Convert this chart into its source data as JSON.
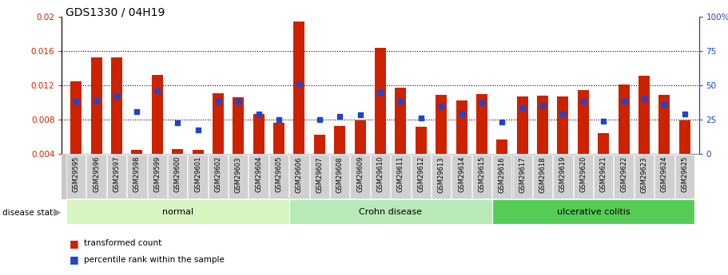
{
  "title": "GDS1330 / 04H19",
  "samples": [
    "GSM29595",
    "GSM29596",
    "GSM29597",
    "GSM29598",
    "GSM29599",
    "GSM29600",
    "GSM29601",
    "GSM29602",
    "GSM29603",
    "GSM29604",
    "GSM29605",
    "GSM29606",
    "GSM29607",
    "GSM29608",
    "GSM29609",
    "GSM29610",
    "GSM29611",
    "GSM29612",
    "GSM29613",
    "GSM29614",
    "GSM29615",
    "GSM29616",
    "GSM29617",
    "GSM29618",
    "GSM29619",
    "GSM29620",
    "GSM29621",
    "GSM29622",
    "GSM29623",
    "GSM29624",
    "GSM29625"
  ],
  "red_bars": [
    0.0125,
    0.0152,
    0.0152,
    0.0045,
    0.0132,
    0.0046,
    0.0045,
    0.0111,
    0.0106,
    0.0087,
    0.0076,
    0.0194,
    0.0062,
    0.0073,
    0.0079,
    0.0164,
    0.0117,
    0.0072,
    0.0109,
    0.0102,
    0.011,
    0.0057,
    0.0107,
    0.0108,
    0.0107,
    0.0114,
    0.0064,
    0.0121,
    0.0131,
    0.0109,
    0.0079
  ],
  "blue_squares": [
    0.0101,
    0.0102,
    0.0108,
    0.0089,
    0.0113,
    0.0076,
    0.0068,
    0.0101,
    0.0101,
    0.0087,
    0.008,
    0.0122,
    0.008,
    0.0084,
    0.0086,
    0.0112,
    0.0101,
    0.0082,
    0.0096,
    0.0087,
    0.01,
    0.0077,
    0.0094,
    0.0097,
    0.0087,
    0.0101,
    0.0078,
    0.0101,
    0.0104,
    0.0098,
    0.0087
  ],
  "group_boundaries": [
    [
      0,
      10,
      "normal",
      "#d8f5c0"
    ],
    [
      11,
      20,
      "Crohn disease",
      "#b8eab8"
    ],
    [
      21,
      30,
      "ulcerative colitis",
      "#55cc55"
    ]
  ],
  "ylim_left": [
    0.004,
    0.02
  ],
  "ylim_right": [
    0,
    100
  ],
  "yticks_left": [
    0.004,
    0.008,
    0.012,
    0.016,
    0.02
  ],
  "ytick_labels_left": [
    "0.004",
    "0.008",
    "0.012",
    "0.016",
    "0.02"
  ],
  "yticks_right": [
    0,
    25,
    50,
    75,
    100
  ],
  "ytick_labels_right": [
    "0",
    "25",
    "50",
    "75",
    "100%"
  ],
  "grid_lines": [
    0.008,
    0.012,
    0.016
  ],
  "bar_color": "#cc2200",
  "blue_color": "#2244cc",
  "disease_state_label": "disease state",
  "legend_red": "transformed count",
  "legend_blue": "percentile rank within the sample"
}
